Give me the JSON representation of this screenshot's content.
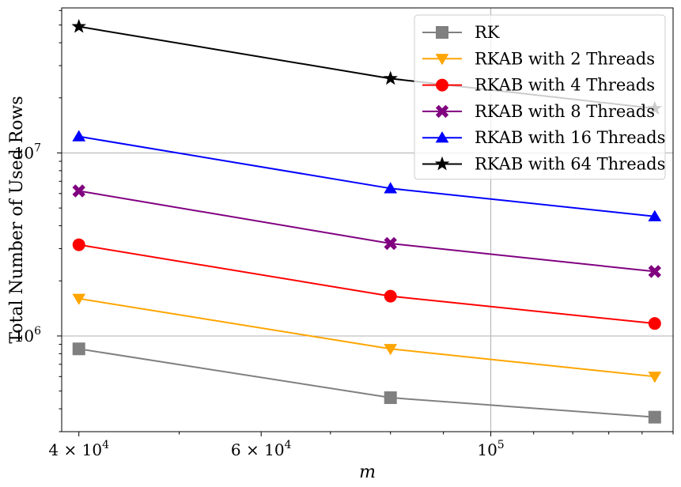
{
  "chart_data": {
    "type": "line",
    "title": "",
    "xlabel": "m",
    "ylabel": "Total Number of Used Rows",
    "xscale": "log",
    "yscale": "log",
    "xlim": [
      38500,
      150000
    ],
    "ylim": [
      300000,
      62000000
    ],
    "grid": true,
    "legend_position": "top-right",
    "x": [
      40000,
      80000,
      144000
    ],
    "x_ticks": [
      {
        "value": 40000,
        "label": "4 × 10",
        "exp": "4"
      },
      {
        "value": 60000,
        "label": "6 × 10",
        "exp": "4"
      },
      {
        "value": 100000,
        "label": "10",
        "exp": "5"
      }
    ],
    "y_ticks": [
      {
        "value": 1000000,
        "label": "10",
        "exp": "6"
      },
      {
        "value": 10000000,
        "label": "10",
        "exp": "7"
      }
    ],
    "series": [
      {
        "name": "RK",
        "color": "#808080",
        "marker": "square",
        "values": [
          850000,
          460000,
          360000
        ]
      },
      {
        "name": "RKAB with 2 Threads",
        "color": "#ffa500",
        "marker": "triangle-down",
        "values": [
          1600000,
          850000,
          600000
        ]
      },
      {
        "name": "RKAB with 4 Threads",
        "color": "#ff0000",
        "marker": "circle",
        "values": [
          3150000,
          1650000,
          1170000
        ]
      },
      {
        "name": "RKAB with 8 Threads",
        "color": "#800080",
        "marker": "x-filled",
        "values": [
          6200000,
          3200000,
          2250000
        ]
      },
      {
        "name": "RKAB with 16 Threads",
        "color": "#0000ff",
        "marker": "triangle-up",
        "values": [
          12300000,
          6400000,
          4500000
        ]
      },
      {
        "name": "RKAB with 64 Threads",
        "color": "#000000",
        "marker": "star",
        "values": [
          49000000,
          25500000,
          17500000
        ]
      }
    ]
  }
}
